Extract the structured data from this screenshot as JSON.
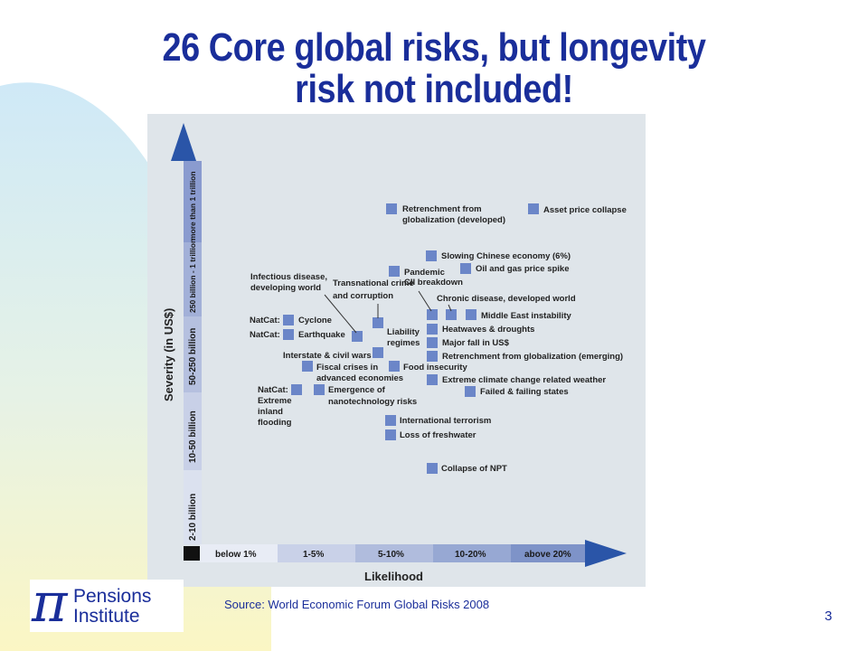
{
  "slide": {
    "title_line1": "26 Core global risks, but longevity",
    "title_line2": "risk not included!",
    "source_prefix": "Source: ",
    "source_text": "World Economic Forum Global Risks 2008",
    "page_number": "3",
    "logo": {
      "symbol": "π",
      "line1": "Pensions",
      "line2": "Institute"
    },
    "colors": {
      "title": "#1a2e9a",
      "marker": "#6b86c8",
      "arrow": "#2a55a8"
    }
  },
  "diagram": {
    "y_axis_title": "Severity (in US$)",
    "x_axis_title": "Likelihood",
    "severity_bands": [
      "2-10 billion",
      "10-50 billion",
      "50-250 billion",
      "250 billion - 1 trillion",
      "more than 1 trillion"
    ],
    "likelihood_bands": [
      "below 1%",
      "1-5%",
      "5-10%",
      "10-20%",
      "above 20%"
    ],
    "labels": {
      "retrenchment_dev_1": "Retrenchment from",
      "retrenchment_dev_2": "globalization (developed)",
      "asset_price": "Asset price collapse",
      "slowing_china": "Slowing Chinese economy (6%)",
      "oil_gas": "Oil and gas price spike",
      "pandemic": "Pandemic",
      "cii": "CII breakdown",
      "infectious_1": "Infectious disease,",
      "infectious_2": "developing world",
      "transnational_1": "Transnational crime",
      "transnational_2": "and corruption",
      "chronic": "Chronic disease, developed world",
      "natcat_1": "NatCat:",
      "cyclone": "Cyclone",
      "natcat_2": "NatCat:",
      "earthquake": "Earthquake",
      "liability_1": "Liability",
      "liability_2": "regimes",
      "middle_east": "Middle East instability",
      "heatwaves": "Heatwaves & droughts",
      "major_fall": "Major fall in US$",
      "interstate": "Interstate & civil wars",
      "retrenchment_em": "Retrenchment from globalization (emerging)",
      "fiscal_1": "Fiscal crises in",
      "fiscal_2": "advanced economies",
      "food": "Food insecurity",
      "extreme_climate": "Extreme climate change related weather",
      "natcat_flood_1": "NatCat:",
      "natcat_flood_2": "Extreme",
      "natcat_flood_3": "inland",
      "natcat_flood_4": "flooding",
      "nano_1": "Emergence of",
      "nano_2": "nanotechnology risks",
      "failed_states": "Failed & failing states",
      "terrorism": "International terrorism",
      "freshwater": "Loss of freshwater",
      "npt": "Collapse of NPT"
    }
  }
}
